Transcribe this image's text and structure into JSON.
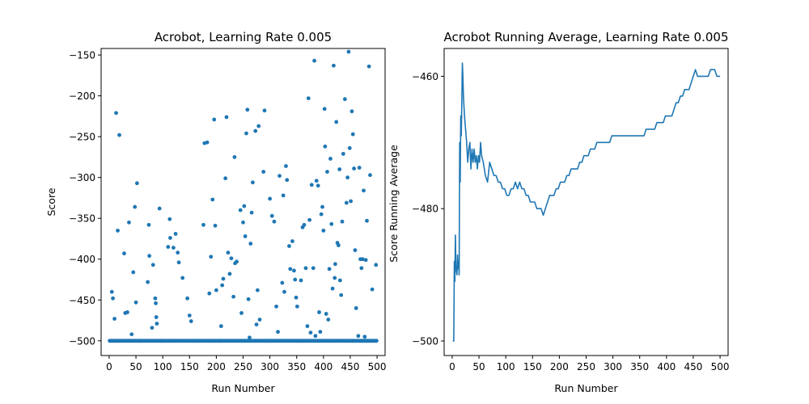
{
  "chart_data": [
    {
      "type": "scatter",
      "title": "Acrobot, Learning Rate 0.005",
      "xlabel": "Run Number",
      "ylabel": "Score",
      "xlim": [
        -15,
        515
      ],
      "ylim": [
        -518,
        -142
      ],
      "xticks": [
        0,
        50,
        100,
        150,
        200,
        250,
        300,
        350,
        400,
        450,
        500
      ],
      "yticks": [
        -500,
        -450,
        -400,
        -350,
        -300,
        -250,
        -200,
        -150
      ],
      "color": "#1f77b4",
      "baseline": {
        "value": -500,
        "x_start": 1,
        "x_end": 500,
        "step": 2
      },
      "points": [
        [
          5,
          -440
        ],
        [
          7,
          -448
        ],
        [
          10,
          -473
        ],
        [
          13,
          -221
        ],
        [
          16,
          -365
        ],
        [
          19,
          -248
        ],
        [
          28,
          -393
        ],
        [
          30,
          -466
        ],
        [
          34,
          -465
        ],
        [
          37,
          -355
        ],
        [
          42,
          -492
        ],
        [
          45,
          -416
        ],
        [
          48,
          -336
        ],
        [
          50,
          -453
        ],
        [
          52,
          -307
        ],
        [
          58,
          -500
        ],
        [
          72,
          -428
        ],
        [
          74,
          -358
        ],
        [
          75,
          -396
        ],
        [
          80,
          -484
        ],
        [
          82,
          -407
        ],
        [
          86,
          -448
        ],
        [
          87,
          -454
        ],
        [
          88,
          -471
        ],
        [
          89,
          -479
        ],
        [
          94,
          -338
        ],
        [
          98,
          -500
        ],
        [
          110,
          -385
        ],
        [
          113,
          -351
        ],
        [
          114,
          -374
        ],
        [
          120,
          -386
        ],
        [
          124,
          -369
        ],
        [
          128,
          -392
        ],
        [
          130,
          -404
        ],
        [
          137,
          -423
        ],
        [
          146,
          -448
        ],
        [
          150,
          -469
        ],
        [
          153,
          -476
        ],
        [
          165,
          -500
        ],
        [
          176,
          -358
        ],
        [
          178,
          -258
        ],
        [
          183,
          -257
        ],
        [
          187,
          -442
        ],
        [
          190,
          -397
        ],
        [
          193,
          -327
        ],
        [
          196,
          -229
        ],
        [
          198,
          -359
        ],
        [
          200,
          -438
        ],
        [
          206,
          -500
        ],
        [
          209,
          -482
        ],
        [
          211,
          -432
        ],
        [
          213,
          -424
        ],
        [
          217,
          -301
        ],
        [
          219,
          -226
        ],
        [
          222,
          -392
        ],
        [
          225,
          -418
        ],
        [
          228,
          -399
        ],
        [
          232,
          -446
        ],
        [
          234,
          -275
        ],
        [
          235,
          -405
        ],
        [
          238,
          -403
        ],
        [
          245,
          -340
        ],
        [
          247,
          -466
        ],
        [
          250,
          -355
        ],
        [
          252,
          -335
        ],
        [
          254,
          -372
        ],
        [
          256,
          -246
        ],
        [
          258,
          -217
        ],
        [
          260,
          -449
        ],
        [
          262,
          -496
        ],
        [
          264,
          -381
        ],
        [
          266,
          -343
        ],
        [
          268,
          -306
        ],
        [
          273,
          -243
        ],
        [
          275,
          -480
        ],
        [
          277,
          -438
        ],
        [
          279,
          -237
        ],
        [
          281,
          -474
        ],
        [
          288,
          -293
        ],
        [
          290,
          -218
        ],
        [
          293,
          -500
        ],
        [
          300,
          -326
        ],
        [
          304,
          -347
        ],
        [
          308,
          -354
        ],
        [
          312,
          -458
        ],
        [
          315,
          -489
        ],
        [
          318,
          -298
        ],
        [
          323,
          -429
        ],
        [
          325,
          -322
        ],
        [
          327,
          -440
        ],
        [
          330,
          -286
        ],
        [
          332,
          -303
        ],
        [
          336,
          -384
        ],
        [
          338,
          -412
        ],
        [
          342,
          -378
        ],
        [
          345,
          -414
        ],
        [
          347,
          -425
        ],
        [
          349,
          -447
        ],
        [
          351,
          -458
        ],
        [
          353,
          -500
        ],
        [
          358,
          -426
        ],
        [
          361,
          -361
        ],
        [
          364,
          -358
        ],
        [
          367,
          -411
        ],
        [
          370,
          -482
        ],
        [
          372,
          -203
        ],
        [
          374,
          -352
        ],
        [
          376,
          -490
        ],
        [
          378,
          -309
        ],
        [
          381,
          -411
        ],
        [
          383,
          -157
        ],
        [
          385,
          -494
        ],
        [
          387,
          -304
        ],
        [
          390,
          -310
        ],
        [
          392,
          -465
        ],
        [
          394,
          -489
        ],
        [
          396,
          -345
        ],
        [
          398,
          -336
        ],
        [
          400,
          -365
        ],
        [
          402,
          -216
        ],
        [
          403,
          -262
        ],
        [
          405,
          -467
        ],
        [
          407,
          -293
        ],
        [
          409,
          -474
        ],
        [
          411,
          -412
        ],
        [
          413,
          -277
        ],
        [
          415,
          -357
        ],
        [
          417,
          -436
        ],
        [
          419,
          -163
        ],
        [
          421,
          -423
        ],
        [
          422,
          -406
        ],
        [
          424,
          -232
        ],
        [
          426,
          -380
        ],
        [
          428,
          -383
        ],
        [
          430,
          -290
        ],
        [
          431,
          -426
        ],
        [
          433,
          -444
        ],
        [
          435,
          -354
        ],
        [
          437,
          -271
        ],
        [
          440,
          -204
        ],
        [
          443,
          -331
        ],
        [
          445,
          -300
        ],
        [
          447,
          -146
        ],
        [
          449,
          -264
        ],
        [
          451,
          -329
        ],
        [
          453,
          -219
        ],
        [
          455,
          -247
        ],
        [
          457,
          -289
        ],
        [
          459,
          -389
        ],
        [
          461,
          -460
        ],
        [
          465,
          -494
        ],
        [
          467,
          -288
        ],
        [
          469,
          -400
        ],
        [
          471,
          -411
        ],
        [
          473,
          -400
        ],
        [
          475,
          -316
        ],
        [
          477,
          -495
        ],
        [
          479,
          -401
        ],
        [
          481,
          -353
        ],
        [
          483,
          -500
        ],
        [
          485,
          -164
        ],
        [
          487,
          -297
        ],
        [
          491,
          -437
        ],
        [
          495,
          -500
        ],
        [
          498,
          -407
        ]
      ]
    },
    {
      "type": "line",
      "title": "Acrobot Running Average, Learning Rate 0.005",
      "xlabel": "Run Number",
      "ylabel": "Score Running Average",
      "xlim": [
        -15,
        515
      ],
      "ylim": [
        -502.2,
        -455.8
      ],
      "xticks": [
        0,
        50,
        100,
        150,
        200,
        250,
        300,
        350,
        400,
        450,
        500
      ],
      "yticks": [
        -500,
        -480,
        -460
      ],
      "color": "#1f77b4",
      "points": [
        [
          1,
          -500
        ],
        [
          3,
          -500
        ],
        [
          4,
          -488
        ],
        [
          5,
          -491
        ],
        [
          6,
          -484
        ],
        [
          7,
          -489
        ],
        [
          9,
          -490
        ],
        [
          10,
          -487
        ],
        [
          11,
          -489
        ],
        [
          12,
          -488
        ],
        [
          13,
          -490
        ],
        [
          14,
          -470
        ],
        [
          15,
          -476
        ],
        [
          16,
          -466
        ],
        [
          17,
          -469
        ],
        [
          18,
          -464
        ],
        [
          19,
          -458
        ],
        [
          20,
          -460
        ],
        [
          21,
          -463
        ],
        [
          23,
          -466
        ],
        [
          25,
          -468
        ],
        [
          27,
          -470
        ],
        [
          29,
          -473
        ],
        [
          31,
          -471
        ],
        [
          33,
          -470
        ],
        [
          35,
          -474
        ],
        [
          37,
          -471
        ],
        [
          39,
          -473
        ],
        [
          41,
          -471
        ],
        [
          43,
          -473
        ],
        [
          45,
          -472
        ],
        [
          47,
          -474
        ],
        [
          49,
          -472
        ],
        [
          51,
          -473
        ],
        [
          53,
          -470
        ],
        [
          55,
          -472
        ],
        [
          58,
          -473
        ],
        [
          62,
          -475
        ],
        [
          66,
          -476
        ],
        [
          70,
          -473
        ],
        [
          74,
          -474
        ],
        [
          78,
          -475
        ],
        [
          82,
          -475
        ],
        [
          86,
          -476
        ],
        [
          90,
          -476
        ],
        [
          94,
          -477
        ],
        [
          98,
          -477
        ],
        [
          102,
          -478
        ],
        [
          106,
          -478
        ],
        [
          110,
          -477
        ],
        [
          114,
          -477
        ],
        [
          118,
          -476
        ],
        [
          122,
          -477
        ],
        [
          126,
          -476
        ],
        [
          130,
          -477
        ],
        [
          134,
          -477
        ],
        [
          138,
          -478
        ],
        [
          142,
          -478
        ],
        [
          146,
          -479
        ],
        [
          150,
          -479
        ],
        [
          154,
          -479
        ],
        [
          158,
          -480
        ],
        [
          162,
          -480
        ],
        [
          166,
          -480
        ],
        [
          170,
          -481
        ],
        [
          174,
          -480
        ],
        [
          178,
          -479
        ],
        [
          182,
          -478
        ],
        [
          186,
          -478
        ],
        [
          190,
          -478
        ],
        [
          194,
          -477
        ],
        [
          198,
          -477
        ],
        [
          202,
          -476
        ],
        [
          206,
          -476
        ],
        [
          210,
          -476
        ],
        [
          214,
          -475
        ],
        [
          218,
          -475
        ],
        [
          222,
          -474
        ],
        [
          226,
          -474
        ],
        [
          230,
          -474
        ],
        [
          234,
          -474
        ],
        [
          238,
          -473
        ],
        [
          242,
          -473
        ],
        [
          246,
          -472
        ],
        [
          250,
          -472
        ],
        [
          254,
          -472
        ],
        [
          258,
          -471
        ],
        [
          262,
          -471
        ],
        [
          266,
          -471
        ],
        [
          270,
          -470
        ],
        [
          274,
          -470
        ],
        [
          278,
          -470
        ],
        [
          282,
          -470
        ],
        [
          286,
          -470
        ],
        [
          290,
          -470
        ],
        [
          294,
          -470
        ],
        [
          298,
          -469
        ],
        [
          302,
          -469
        ],
        [
          306,
          -469
        ],
        [
          310,
          -469
        ],
        [
          314,
          -469
        ],
        [
          318,
          -469
        ],
        [
          322,
          -469
        ],
        [
          326,
          -469
        ],
        [
          330,
          -469
        ],
        [
          334,
          -469
        ],
        [
          338,
          -469
        ],
        [
          342,
          -469
        ],
        [
          346,
          -469
        ],
        [
          350,
          -469
        ],
        [
          354,
          -469
        ],
        [
          358,
          -469
        ],
        [
          362,
          -468
        ],
        [
          366,
          -468
        ],
        [
          370,
          -468
        ],
        [
          374,
          -468
        ],
        [
          378,
          -468
        ],
        [
          382,
          -467
        ],
        [
          386,
          -467
        ],
        [
          390,
          -467
        ],
        [
          394,
          -467
        ],
        [
          398,
          -466
        ],
        [
          402,
          -466
        ],
        [
          406,
          -466
        ],
        [
          410,
          -466
        ],
        [
          414,
          -465
        ],
        [
          418,
          -464
        ],
        [
          422,
          -464
        ],
        [
          426,
          -463
        ],
        [
          430,
          -463
        ],
        [
          434,
          -462
        ],
        [
          438,
          -462
        ],
        [
          442,
          -462
        ],
        [
          446,
          -461
        ],
        [
          450,
          -460
        ],
        [
          454,
          -459
        ],
        [
          458,
          -460
        ],
        [
          462,
          -460
        ],
        [
          466,
          -460
        ],
        [
          470,
          -460
        ],
        [
          474,
          -460
        ],
        [
          478,
          -460
        ],
        [
          482,
          -459
        ],
        [
          486,
          -459
        ],
        [
          490,
          -459
        ],
        [
          494,
          -460
        ],
        [
          500,
          -460
        ]
      ]
    }
  ]
}
